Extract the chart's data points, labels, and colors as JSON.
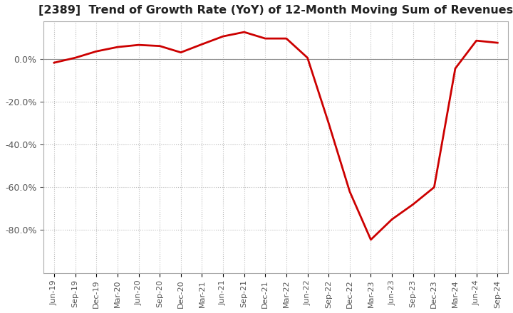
{
  "title": "[2389]  Trend of Growth Rate (YoY) of 12-Month Moving Sum of Revenues",
  "title_fontsize": 11.5,
  "x_labels": [
    "Jun-19",
    "Sep-19",
    "Dec-19",
    "Mar-20",
    "Jun-20",
    "Sep-20",
    "Dec-20",
    "Mar-21",
    "Jun-21",
    "Sep-21",
    "Dec-21",
    "Mar-22",
    "Jun-22",
    "Sep-22",
    "Dec-22",
    "Mar-23",
    "Jun-23",
    "Sep-23",
    "Dec-23",
    "Mar-24",
    "Jun-24",
    "Sep-24"
  ],
  "y_values": [
    -0.018,
    0.005,
    0.035,
    0.055,
    0.065,
    0.06,
    0.03,
    0.068,
    0.105,
    0.125,
    0.095,
    0.095,
    0.005,
    -0.3,
    -0.62,
    -0.845,
    -0.75,
    -0.68,
    -0.6,
    -0.045,
    0.085,
    0.075
  ],
  "line_color": "#cc0000",
  "background_color": "#ffffff",
  "grid_color": "#bbbbbb",
  "zero_line_color": "#888888",
  "ylim": [
    -1.0,
    0.175
  ],
  "yticks": [
    0.0,
    -0.2,
    -0.4,
    -0.6,
    -0.8
  ],
  "tick_label_color": "#555555",
  "spine_color": "#aaaaaa"
}
